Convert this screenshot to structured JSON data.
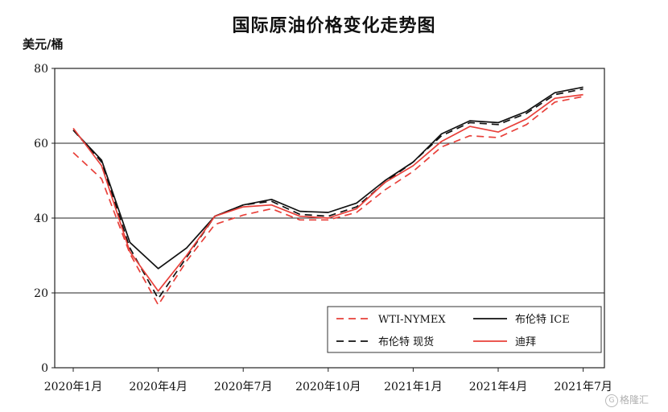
{
  "chart_data": {
    "type": "line",
    "title": "国际原油价格变化走势图",
    "ylabel": "美元/桶",
    "xlabel": "",
    "ylim": [
      0,
      80
    ],
    "yticks": [
      0,
      20,
      40,
      60,
      80
    ],
    "x_tick_labels": [
      "2020年1月",
      "2020年4月",
      "2020年7月",
      "2020年10月",
      "2021年1月",
      "2021年4月",
      "2021年7月"
    ],
    "grid": "horizontal",
    "legend_position": "bottom-right",
    "x": [
      "2020年1月",
      "2020年2月",
      "2020年3月",
      "2020年4月",
      "2020年5月",
      "2020年6月",
      "2020年7月",
      "2020年8月",
      "2020年9月",
      "2020年10月",
      "2020年11月",
      "2020年12月",
      "2021年1月",
      "2021年2月",
      "2021年3月",
      "2021年4月",
      "2021年5月",
      "2021年6月",
      "2021年7月"
    ],
    "series": [
      {
        "name": "WTI-NYMEX",
        "color": "#e8403a",
        "dash": true,
        "values": [
          57.5,
          50.5,
          30.5,
          16.8,
          28.5,
          38.3,
          40.8,
          42.5,
          39.5,
          39.5,
          41.5,
          47.5,
          52.5,
          59.0,
          62.0,
          61.5,
          65.0,
          71.0,
          72.5
        ]
      },
      {
        "name": "布伦特 ICE",
        "color": "#111111",
        "dash": false,
        "values": [
          63.5,
          55.5,
          33.5,
          26.5,
          32.0,
          40.5,
          43.5,
          45.0,
          41.8,
          41.5,
          44.0,
          50.0,
          55.0,
          62.5,
          66.0,
          65.5,
          68.5,
          73.5,
          75.0
        ]
      },
      {
        "name": "布伦特 现货",
        "color": "#111111",
        "dash": true,
        "values": [
          63.5,
          55.0,
          32.0,
          18.5,
          29.5,
          40.5,
          43.5,
          44.5,
          41.0,
          40.5,
          43.0,
          49.5,
          55.0,
          62.0,
          65.5,
          65.0,
          68.0,
          73.0,
          74.5
        ]
      },
      {
        "name": "迪拜",
        "color": "#e8403a",
        "dash": false,
        "values": [
          64.0,
          54.0,
          31.0,
          20.5,
          30.0,
          40.5,
          43.0,
          43.5,
          40.5,
          40.0,
          42.5,
          49.5,
          54.0,
          60.5,
          64.5,
          63.0,
          66.5,
          72.0,
          73.0
        ]
      }
    ]
  },
  "watermark": {
    "text": "格隆汇",
    "icon": "g-circle-icon"
  }
}
